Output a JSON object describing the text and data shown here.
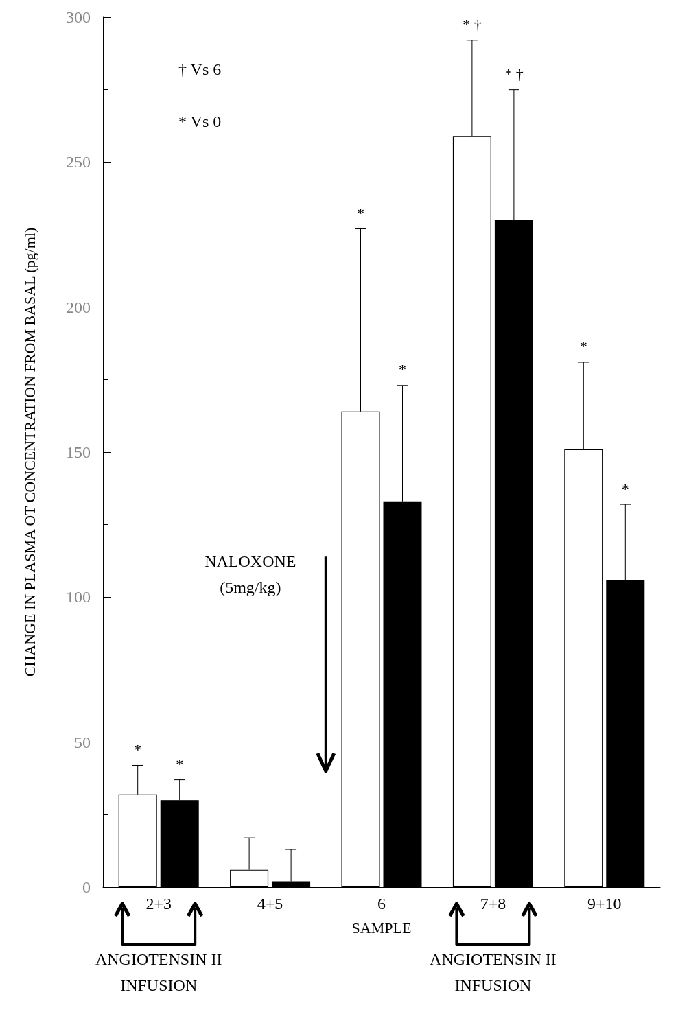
{
  "chart_data": {
    "type": "bar",
    "xlabel": "SAMPLE",
    "ylabel": "CHANGE IN PLASMA OT CONCENTRATION FROM BASAL (pg/ml)",
    "categories": [
      "2+3",
      "4+5",
      "6",
      "7+8",
      "9+10"
    ],
    "series": [
      {
        "color": "#ffffff",
        "values": [
          32,
          6,
          164,
          259,
          151
        ],
        "errors": [
          [
            32,
            42
          ],
          [
            6,
            17
          ],
          [
            164,
            227
          ],
          [
            259,
            292
          ],
          [
            151,
            181
          ]
        ]
      },
      {
        "color": "#000000",
        "values": [
          30,
          2,
          133,
          230,
          106
        ],
        "errors": [
          [
            30,
            37
          ],
          [
            2,
            13
          ],
          [
            133,
            173
          ],
          [
            230,
            275
          ],
          [
            106,
            132
          ]
        ]
      }
    ],
    "ylim": [
      0,
      300
    ],
    "yticks": [
      0,
      50,
      100,
      150,
      200,
      250,
      300
    ],
    "grid": false,
    "annotations": [
      "† Vs 6",
      "* Vs 0",
      "NALOXONE\n(5mg/kg)",
      "ANGIOTENSIN II\nINFUSION",
      "ANGIOTENSIN II\nINFUSION",
      "*",
      "*",
      "*",
      "*",
      "* †",
      "* †",
      "*",
      "*"
    ]
  }
}
